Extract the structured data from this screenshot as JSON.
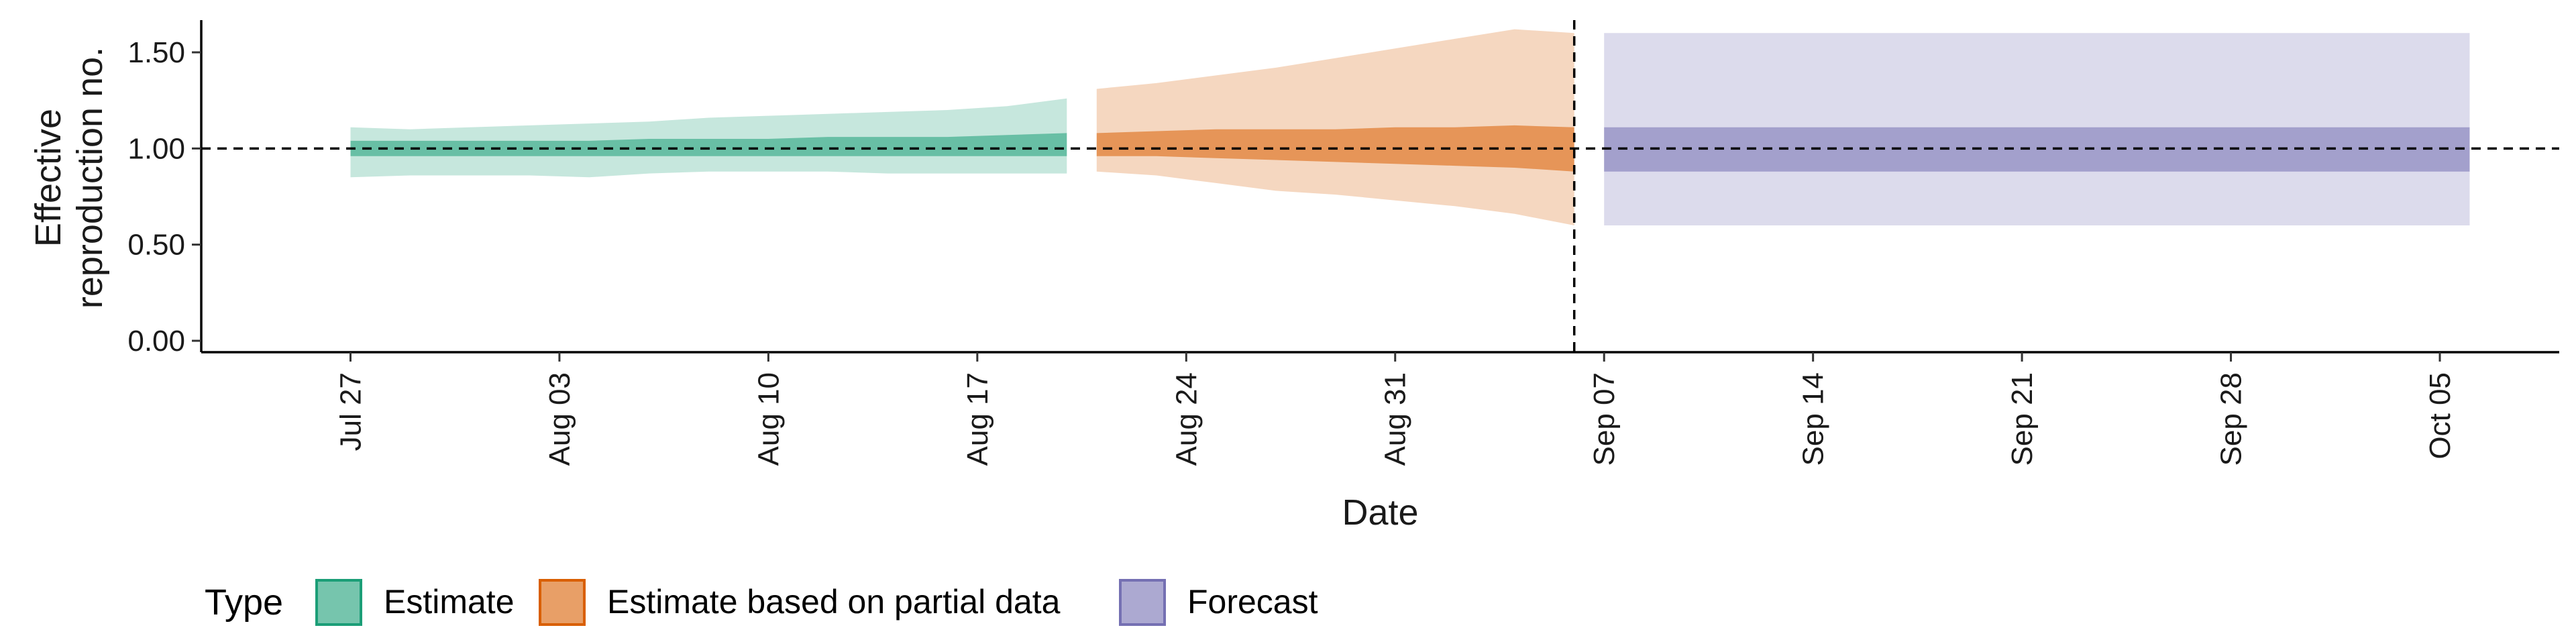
{
  "chart_data": {
    "type": "area",
    "xlabel": "Date",
    "ylabel_lines": [
      "Effective",
      "reproduction no."
    ],
    "ylim": [
      0.0,
      1.65
    ],
    "yticks": [
      0.0,
      0.5,
      1.0,
      1.5
    ],
    "ytick_labels": [
      "0.00",
      "0.50",
      "1.00",
      "1.50"
    ],
    "xrange": [
      "2020-07-22",
      "2020-10-09"
    ],
    "xticks": [
      "2020-07-27",
      "2020-08-03",
      "2020-08-10",
      "2020-08-17",
      "2020-08-24",
      "2020-08-31",
      "2020-09-07",
      "2020-09-14",
      "2020-09-21",
      "2020-09-28",
      "2020-10-05"
    ],
    "xtick_labels": [
      "Jul 27",
      "Aug 03",
      "Aug 10",
      "Aug 17",
      "Aug 24",
      "Aug 31",
      "Sep 07",
      "Sep 14",
      "Sep 21",
      "Sep 28",
      "Oct 05"
    ],
    "reference_line": {
      "y": 1.0,
      "style": "dashed"
    },
    "vertical_line": {
      "x": "2020-09-06",
      "style": "dashed"
    },
    "grid": false,
    "legend": {
      "title": "Type",
      "position": "bottom-left"
    },
    "colors": {
      "Estimate": "#1b9e77",
      "Estimate based on partial data": "#d95f02",
      "Forecast": "#7570b3"
    },
    "series": [
      {
        "name": "Estimate",
        "dates": [
          "2020-07-27",
          "2020-07-29",
          "2020-07-31",
          "2020-08-02",
          "2020-08-04",
          "2020-08-06",
          "2020-08-08",
          "2020-08-10",
          "2020-08-12",
          "2020-08-14",
          "2020-08-16",
          "2020-08-18",
          "2020-08-20"
        ],
        "lower90": [
          0.85,
          0.86,
          0.86,
          0.86,
          0.85,
          0.87,
          0.88,
          0.88,
          0.88,
          0.87,
          0.87,
          0.87,
          0.87
        ],
        "upper90": [
          1.11,
          1.1,
          1.11,
          1.12,
          1.13,
          1.14,
          1.16,
          1.17,
          1.18,
          1.19,
          1.2,
          1.22,
          1.26
        ],
        "lower50": [
          0.96,
          0.96,
          0.96,
          0.96,
          0.96,
          0.96,
          0.96,
          0.96,
          0.96,
          0.96,
          0.96,
          0.96,
          0.96
        ],
        "upper50": [
          1.04,
          1.04,
          1.04,
          1.04,
          1.04,
          1.05,
          1.05,
          1.05,
          1.06,
          1.06,
          1.06,
          1.07,
          1.08
        ]
      },
      {
        "name": "Estimate based on partial data",
        "dates": [
          "2020-08-21",
          "2020-08-23",
          "2020-08-25",
          "2020-08-27",
          "2020-08-29",
          "2020-08-31",
          "2020-09-02",
          "2020-09-04",
          "2020-09-06"
        ],
        "lower90": [
          0.88,
          0.86,
          0.82,
          0.78,
          0.76,
          0.73,
          0.7,
          0.66,
          0.6
        ],
        "upper90": [
          1.31,
          1.34,
          1.38,
          1.42,
          1.47,
          1.52,
          1.57,
          1.62,
          1.6
        ],
        "lower50": [
          0.96,
          0.96,
          0.95,
          0.94,
          0.93,
          0.92,
          0.91,
          0.9,
          0.88
        ],
        "upper50": [
          1.08,
          1.09,
          1.1,
          1.1,
          1.1,
          1.11,
          1.11,
          1.12,
          1.11
        ]
      },
      {
        "name": "Forecast",
        "dates": [
          "2020-09-07",
          "2020-10-06"
        ],
        "lower90": [
          0.6,
          0.6
        ],
        "upper90": [
          1.6,
          1.6
        ],
        "lower50": [
          0.88,
          0.88
        ],
        "upper50": [
          1.11,
          1.11
        ]
      }
    ]
  }
}
